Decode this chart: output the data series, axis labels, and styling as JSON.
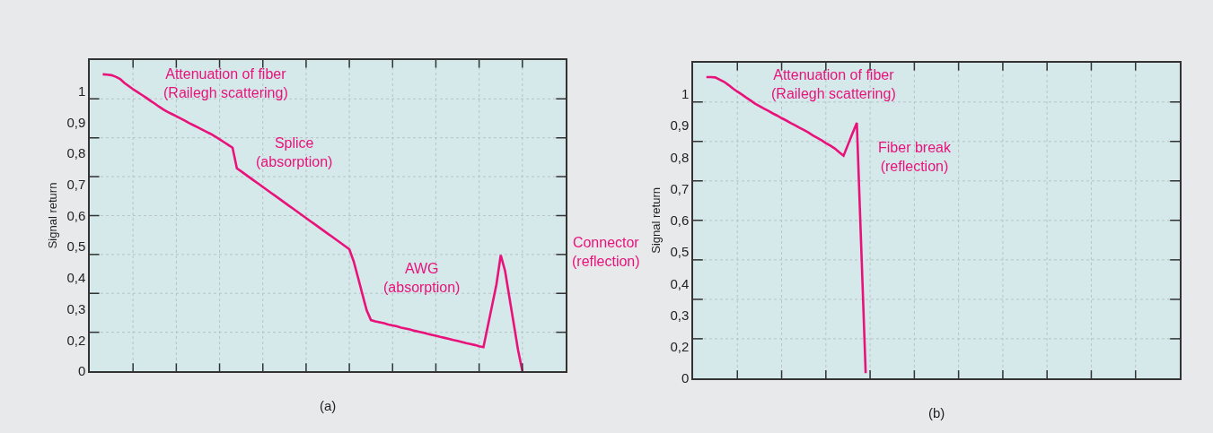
{
  "chart_data": [
    {
      "type": "line",
      "ylabel": "Signal return",
      "tick_labels": "y",
      "grid": true,
      "categories": [
        null,
        null,
        null,
        null,
        null,
        null,
        null,
        null,
        null,
        null,
        null,
        null,
        null,
        null,
        null,
        null,
        null,
        null,
        null,
        null,
        null,
        null,
        null,
        null,
        null,
        null,
        null,
        null,
        null,
        null,
        null,
        null,
        null,
        null,
        null,
        null,
        null,
        null,
        null,
        null,
        null,
        null,
        null,
        null,
        null,
        null,
        null,
        null,
        null,
        null,
        null,
        null,
        null,
        null,
        null,
        null,
        null,
        null,
        null,
        null,
        null,
        null,
        null,
        null,
        null,
        null,
        null,
        null,
        null,
        null,
        null,
        null,
        null,
        null,
        null,
        null,
        null,
        null,
        null,
        null,
        null,
        null,
        null,
        null,
        null,
        null,
        null,
        null,
        null,
        null,
        null,
        null,
        null,
        null,
        null,
        null,
        null,
        null,
        null,
        null,
        null,
        null,
        null,
        null,
        null,
        null,
        null,
        null,
        null,
        null,
        null
      ],
      "series": [
        {
          "color": "#e8127a",
          "values": [
            null,
            null,
            null,
            1.054,
            1.053,
            1.051,
            1.046,
            1.039,
            1.026,
            1.016,
            1.006,
            0.997,
            0.988,
            0.979,
            0.969,
            0.96,
            0.95,
            0.941,
            0.933,
            0.926,
            0.919,
            0.912,
            0.905,
            0.897,
            0.89,
            0.883,
            0.876,
            0.869,
            0.862,
            0.854,
            0.845,
            0.836,
            0.827,
            0.818,
            0.752,
            0.742,
            0.732,
            0.722,
            0.712,
            0.702,
            0.692,
            0.682,
            0.672,
            0.662,
            0.652,
            0.642,
            0.632,
            0.622,
            0.612,
            0.602,
            0.592,
            0.582,
            0.572,
            0.562,
            0.552,
            0.542,
            0.532,
            0.522,
            0.512,
            0.502,
            0.492,
            0.453,
            0.401,
            0.348,
            0.296,
            0.264,
            0.26,
            0.257,
            0.254,
            0.25,
            0.247,
            0.244,
            0.24,
            0.237,
            0.234,
            0.23,
            0.227,
            0.224,
            0.22,
            0.217,
            0.214,
            0.21,
            0.207,
            0.204,
            0.2,
            0.197,
            0.194,
            0.19,
            0.187,
            0.184,
            0.18,
            0.177,
            0.244,
            0.311,
            0.379,
            0.473,
            0.422,
            0.337,
            0.253,
            0.168,
            0.1,
            null,
            null,
            null,
            null,
            null,
            null,
            null,
            null,
            null,
            null
          ]
        }
      ],
      "ylim": [
        0.1,
        1.1
      ],
      "yticks": [
        {
          "value": 0.1,
          "label": "0"
        },
        {
          "value": 0.2,
          "label": "0,2"
        },
        {
          "value": 0.3,
          "label": "0,3"
        },
        {
          "value": 0.4,
          "label": "0,4"
        },
        {
          "value": 0.5,
          "label": "0,5"
        },
        {
          "value": 0.6,
          "label": "0,6"
        },
        {
          "value": 0.7,
          "label": "0,7"
        },
        {
          "value": 0.8,
          "label": "0,8"
        },
        {
          "value": 0.9,
          "label": "0,9"
        },
        {
          "value": 1,
          "label": "1"
        },
        {
          "value": 0.225,
          "label": null
        },
        {
          "value": 0.35,
          "label": null
        },
        {
          "value": 0.475,
          "label": null
        },
        {
          "value": 0.6,
          "label": null
        },
        {
          "value": 0.725,
          "label": null
        },
        {
          "value": 0.85,
          "label": null
        },
        {
          "value": 0.975,
          "label": null
        }
      ],
      "annotations": [
        "Attenuation of fiber\n(Railegh scattering)",
        "Splice\n(absorption)",
        "AWG\n(absorption)",
        "Connector\n(reflection)",
        "(a)"
      ]
    },
    {
      "type": "line",
      "ylabel": "Signal return",
      "tick_labels": "y",
      "grid": true,
      "categories": [
        null,
        null,
        null,
        null,
        null,
        null,
        null,
        null,
        null,
        null,
        null,
        null,
        null,
        null,
        null,
        null,
        null,
        null,
        null,
        null,
        null,
        null,
        null,
        null,
        null,
        null,
        null,
        null,
        null,
        null,
        null,
        null,
        null,
        null,
        null,
        null,
        null,
        null,
        null,
        null,
        null,
        null,
        null,
        null,
        null,
        null,
        null,
        null,
        null,
        null,
        null,
        null,
        null,
        null,
        null,
        null,
        null,
        null,
        null,
        null,
        null,
        null,
        null,
        null,
        null,
        null,
        null,
        null,
        null,
        null,
        null,
        null,
        null,
        null,
        null,
        null,
        null,
        null,
        null,
        null,
        null,
        null,
        null,
        null,
        null,
        null,
        null,
        null,
        null,
        null,
        null,
        null,
        null,
        null,
        null,
        null,
        null,
        null,
        null,
        null,
        null,
        null,
        null,
        null,
        null,
        null,
        null,
        null,
        null,
        null,
        null
      ],
      "series": [
        {
          "color": "#e8127a",
          "values": [
            null,
            null,
            null,
            1.054,
            1.054,
            1.053,
            1.046,
            1.039,
            1.029,
            1.018,
            1.008,
            0.999,
            0.989,
            0.98,
            0.97,
            0.962,
            0.954,
            0.947,
            0.939,
            0.932,
            0.924,
            0.917,
            0.909,
            0.902,
            0.894,
            0.887,
            0.879,
            0.87,
            0.862,
            0.854,
            0.845,
            0.837,
            0.828,
            0.816,
            0.805,
            0.84,
            0.875,
            0.909,
            0.513,
            0.116,
            null,
            null,
            null,
            null,
            null,
            null,
            null,
            null,
            null,
            null,
            null,
            null,
            null,
            null,
            null,
            null,
            null,
            null,
            null,
            null,
            null,
            null,
            null,
            null,
            null,
            null,
            null,
            null,
            null,
            null,
            null,
            null,
            null,
            null,
            null,
            null,
            null,
            null,
            null,
            null,
            null,
            null,
            null,
            null,
            null,
            null,
            null,
            null,
            null,
            null,
            null,
            null,
            null,
            null,
            null,
            null,
            null,
            null,
            null,
            null,
            null,
            null,
            null,
            null,
            null,
            null,
            null,
            null,
            null,
            null,
            null
          ]
        }
      ],
      "ylim": [
        0.1,
        1.1
      ],
      "yticks": [
        {
          "value": 0.1,
          "label": "0"
        },
        {
          "value": 0.2,
          "label": "0,2"
        },
        {
          "value": 0.3,
          "label": "0,3"
        },
        {
          "value": 0.4,
          "label": "0,4"
        },
        {
          "value": 0.5,
          "label": "0,5"
        },
        {
          "value": 0.6,
          "label": "0,6"
        },
        {
          "value": 0.7,
          "label": "0,7"
        },
        {
          "value": 0.8,
          "label": "0,8"
        },
        {
          "value": 0.9,
          "label": "0,9"
        },
        {
          "value": 1,
          "label": "1"
        },
        {
          "value": 0.225,
          "label": null
        },
        {
          "value": 0.35,
          "label": null
        },
        {
          "value": 0.475,
          "label": null
        },
        {
          "value": 0.6,
          "label": null
        },
        {
          "value": 0.725,
          "label": null
        },
        {
          "value": 0.85,
          "label": null
        },
        {
          "value": 0.975,
          "label": null
        }
      ],
      "annotations": [
        "Attenuation of fiber\n(Railegh scattering)",
        "Fiber break\n(reflection)",
        "(b)"
      ]
    }
  ]
}
